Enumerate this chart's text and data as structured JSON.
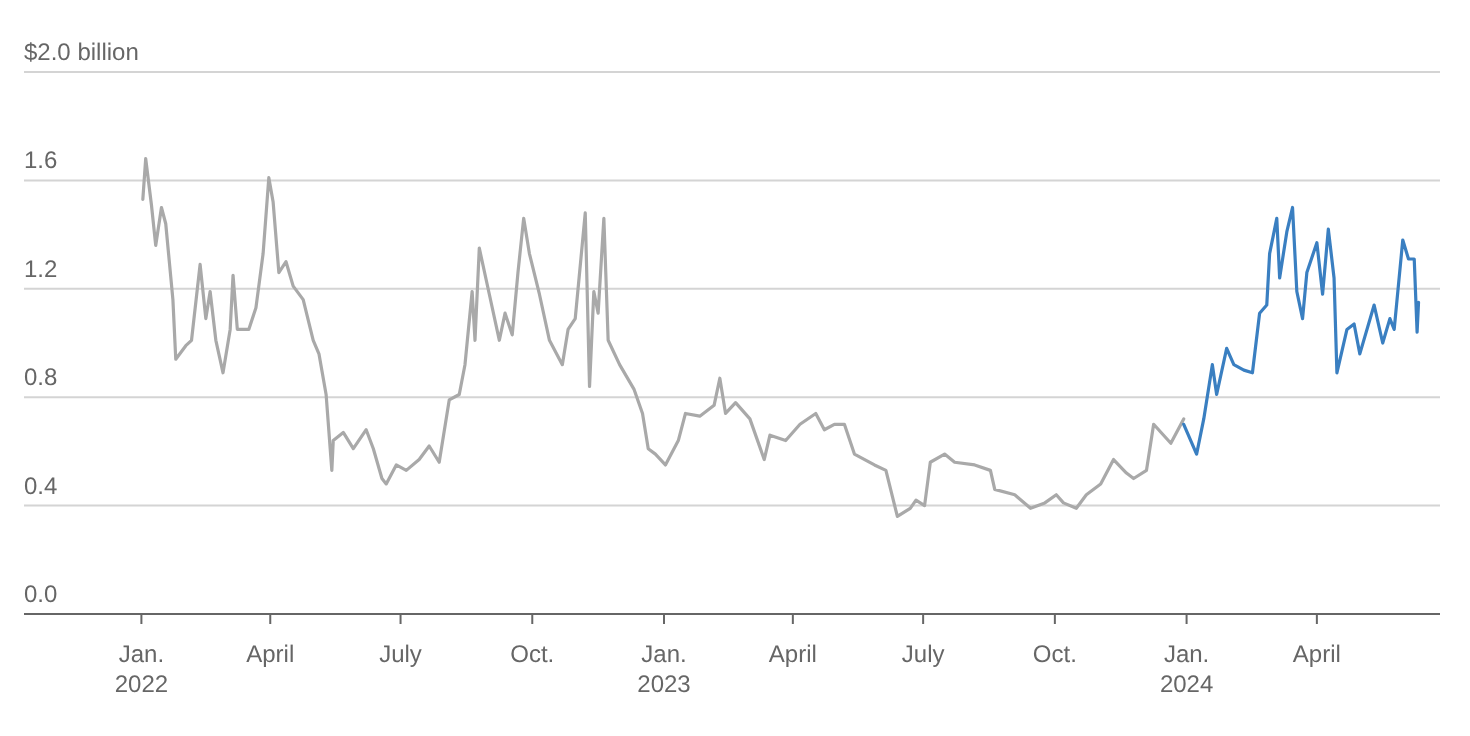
{
  "chart_data": {
    "type": "line",
    "ylim": [
      0,
      2
    ],
    "yticks": [
      {
        "value": 0,
        "label": "0.0"
      },
      {
        "value": 0.4,
        "label": "0.4"
      },
      {
        "value": 0.8,
        "label": "0.8"
      },
      {
        "value": 1.2,
        "label": "1.2"
      },
      {
        "value": 1.6,
        "label": "1.6"
      },
      {
        "value": 2,
        "label": "$2.0 billion"
      }
    ],
    "xlim": [
      "2021-10-11",
      "2024-06-26"
    ],
    "xticks": [
      {
        "value": "2022-01-01",
        "label": "Jan.\n2022"
      },
      {
        "value": "2022-04-01",
        "label": "April"
      },
      {
        "value": "2022-07-01",
        "label": "July"
      },
      {
        "value": "2022-10-01",
        "label": "Oct."
      },
      {
        "value": "2023-01-01",
        "label": "Jan.\n2023"
      },
      {
        "value": "2023-04-01",
        "label": "April"
      },
      {
        "value": "2023-07-01",
        "label": "July"
      },
      {
        "value": "2023-10-01",
        "label": "Oct."
      },
      {
        "value": "2024-01-01",
        "label": "Jan.\n2024"
      },
      {
        "value": "2024-04-01",
        "label": "April"
      }
    ],
    "grid": "y",
    "marker": "none",
    "line_style": "solid",
    "series": [
      {
        "color": "#a9a9a9",
        "x": [
          "2022-01-02",
          "2022-01-04",
          "2022-01-08",
          "2022-01-11",
          "2022-01-15",
          "2022-01-18",
          "2022-01-23",
          "2022-01-25",
          "2022-02-01",
          "2022-02-05",
          "2022-02-11",
          "2022-02-15",
          "2022-02-18",
          "2022-02-22",
          "2022-02-27",
          "2022-03-04",
          "2022-03-06",
          "2022-03-09",
          "2022-03-17",
          "2022-03-22",
          "2022-03-27",
          "2022-03-31",
          "2022-04-03",
          "2022-04-07",
          "2022-04-12",
          "2022-04-17",
          "2022-04-24",
          "2022-05-01",
          "2022-05-05",
          "2022-05-10",
          "2022-05-14",
          "2022-05-15",
          "2022-05-22",
          "2022-05-29",
          "2022-06-07",
          "2022-06-12",
          "2022-06-18",
          "2022-06-21",
          "2022-06-28",
          "2022-07-05",
          "2022-07-14",
          "2022-07-21",
          "2022-07-28",
          "2022-08-04",
          "2022-08-11",
          "2022-08-15",
          "2022-08-20",
          "2022-08-22",
          "2022-08-25",
          "2022-09-01",
          "2022-09-08",
          "2022-09-12",
          "2022-09-17",
          "2022-09-21",
          "2022-09-25",
          "2022-09-29",
          "2022-10-06",
          "2022-10-13",
          "2022-10-22",
          "2022-10-26",
          "2022-10-31",
          "2022-11-07",
          "2022-11-10",
          "2022-11-13",
          "2022-11-16",
          "2022-11-20",
          "2022-11-23",
          "2022-12-01",
          "2022-12-11",
          "2022-12-17",
          "2022-12-21",
          "2022-12-26",
          "2023-01-02",
          "2023-01-11",
          "2023-01-16",
          "2023-01-26",
          "2023-02-05",
          "2023-02-09",
          "2023-02-13",
          "2023-02-20",
          "2023-03-02",
          "2023-03-12",
          "2023-03-16",
          "2023-03-27",
          "2023-04-06",
          "2023-04-17",
          "2023-04-23",
          "2023-04-30",
          "2023-05-07",
          "2023-05-14",
          "2023-05-28",
          "2023-06-05",
          "2023-06-13",
          "2023-06-22",
          "2023-06-26",
          "2023-07-02",
          "2023-07-06",
          "2023-07-16",
          "2023-07-23",
          "2023-08-06",
          "2023-08-17",
          "2023-08-20",
          "2023-09-03",
          "2023-09-14",
          "2023-09-24",
          "2023-10-02",
          "2023-10-07",
          "2023-10-16",
          "2023-10-23",
          "2023-11-02",
          "2023-11-11",
          "2023-11-20",
          "2023-11-25",
          "2023-12-04",
          "2023-12-09",
          "2023-12-21",
          "2023-12-30"
        ],
        "values": [
          1.53,
          1.68,
          1.51,
          1.36,
          1.5,
          1.44,
          1.16,
          0.94,
          0.99,
          1.01,
          1.29,
          1.09,
          1.19,
          1.01,
          0.89,
          1.05,
          1.25,
          1.05,
          1.05,
          1.13,
          1.33,
          1.61,
          1.52,
          1.26,
          1.3,
          1.21,
          1.16,
          1.01,
          0.96,
          0.81,
          0.53,
          0.64,
          0.67,
          0.61,
          0.68,
          0.61,
          0.5,
          0.48,
          0.55,
          0.53,
          0.57,
          0.62,
          0.56,
          0.79,
          0.81,
          0.92,
          1.19,
          1.01,
          1.35,
          1.18,
          1.01,
          1.11,
          1.03,
          1.26,
          1.46,
          1.33,
          1.18,
          1.01,
          0.92,
          1.05,
          1.09,
          1.48,
          0.84,
          1.19,
          1.11,
          1.46,
          1.01,
          0.92,
          0.83,
          0.74,
          0.61,
          0.59,
          0.55,
          0.64,
          0.74,
          0.73,
          0.77,
          0.87,
          0.74,
          0.78,
          0.72,
          0.57,
          0.66,
          0.64,
          0.7,
          0.74,
          0.68,
          0.7,
          0.7,
          0.59,
          0.55,
          0.53,
          0.36,
          0.39,
          0.42,
          0.4,
          0.56,
          0.59,
          0.56,
          0.55,
          0.53,
          0.46,
          0.44,
          0.39,
          0.41,
          0.44,
          0.41,
          0.39,
          0.44,
          0.48,
          0.57,
          0.52,
          0.5,
          0.53,
          0.7,
          0.63,
          0.72
        ]
      },
      {
        "color": "#3a7fc1",
        "x": [
          "2023-12-30",
          "2024-01-08",
          "2024-01-13",
          "2024-01-19",
          "2024-01-22",
          "2024-01-29",
          "2024-02-03",
          "2024-02-10",
          "2024-02-16",
          "2024-02-21",
          "2024-02-26",
          "2024-02-28",
          "2024-03-04",
          "2024-03-06",
          "2024-03-11",
          "2024-03-15",
          "2024-03-18",
          "2024-03-22",
          "2024-03-25",
          "2024-04-01",
          "2024-04-05",
          "2024-04-09",
          "2024-04-13",
          "2024-04-15",
          "2024-04-22",
          "2024-04-27",
          "2024-05-01",
          "2024-05-11",
          "2024-05-17",
          "2024-05-22",
          "2024-05-25",
          "2024-05-31",
          "2024-06-04",
          "2024-06-08",
          "2024-06-10",
          "2024-06-11"
        ],
        "values": [
          0.7,
          0.59,
          0.72,
          0.92,
          0.81,
          0.98,
          0.92,
          0.9,
          0.89,
          1.11,
          1.14,
          1.33,
          1.46,
          1.24,
          1.41,
          1.5,
          1.19,
          1.09,
          1.26,
          1.37,
          1.18,
          1.42,
          1.24,
          0.89,
          1.05,
          1.07,
          0.96,
          1.14,
          1,
          1.09,
          1.05,
          1.38,
          1.31,
          1.31,
          1.04,
          1.15
        ]
      }
    ]
  }
}
